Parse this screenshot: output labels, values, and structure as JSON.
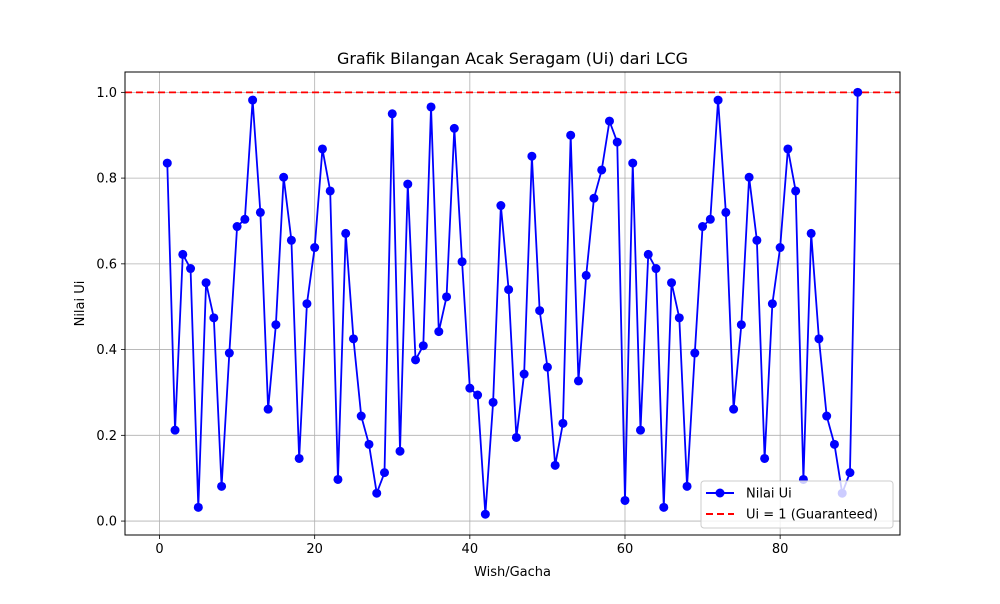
{
  "chart_data": {
    "type": "line",
    "title": "Grafik Bilangan Acak Seragam (Ui) dari LCG",
    "xlabel": "Wish/Gacha",
    "ylabel": "Nilai Ui",
    "xlim": [
      -4.45,
      95.45
    ],
    "ylim": [
      -0.0325,
      1.0475
    ],
    "xticks": [
      0,
      20,
      40,
      60,
      80
    ],
    "xtick_labels": [
      "0",
      "20",
      "40",
      "60",
      "80"
    ],
    "yticks": [
      0.0,
      0.2,
      0.4,
      0.6,
      0.8,
      1.0
    ],
    "ytick_labels": [
      "0.0",
      "0.2",
      "0.4",
      "0.6",
      "0.8",
      "1.0"
    ],
    "grid": true,
    "legend_position": "lower-right",
    "series": [
      {
        "name": "Nilai Ui",
        "color": "#0000ff",
        "marker": "circle",
        "x": [
          1,
          2,
          3,
          4,
          5,
          6,
          7,
          8,
          9,
          10,
          11,
          12,
          13,
          14,
          15,
          16,
          17,
          18,
          19,
          20,
          21,
          22,
          23,
          24,
          25,
          26,
          27,
          28,
          29,
          30,
          31,
          32,
          33,
          34,
          35,
          36,
          37,
          38,
          39,
          40,
          41,
          42,
          43,
          44,
          45,
          46,
          47,
          48,
          49,
          50,
          51,
          52,
          53,
          54,
          55,
          56,
          57,
          58,
          59,
          60,
          61,
          62,
          63,
          64,
          65,
          66,
          67,
          68,
          69,
          70,
          71,
          72,
          73,
          74,
          75,
          76,
          77,
          78,
          79,
          80,
          81,
          82,
          83,
          84,
          85,
          86,
          87,
          88,
          89,
          90
        ],
        "y": [
          0.835,
          0.212,
          0.622,
          0.589,
          0.032,
          0.556,
          0.474,
          0.081,
          0.392,
          0.687,
          0.704,
          0.982,
          0.72,
          0.261,
          0.458,
          0.802,
          0.655,
          0.146,
          0.507,
          0.638,
          0.868,
          0.77,
          0.097,
          0.671,
          0.425,
          0.245,
          0.179,
          0.065,
          0.113,
          0.95,
          0.163,
          0.786,
          0.376,
          0.409,
          0.966,
          0.442,
          0.523,
          0.916,
          0.605,
          0.31,
          0.294,
          0.016,
          0.277,
          0.736,
          0.54,
          0.195,
          0.343,
          0.851,
          0.491,
          0.359,
          0.13,
          0.228,
          0.9,
          0.327,
          0.573,
          0.753,
          0.819,
          0.933,
          0.884,
          0.048,
          0.835,
          0.212,
          0.622,
          0.589,
          0.032,
          0.556,
          0.474,
          0.081,
          0.392,
          0.687,
          0.704,
          0.982,
          0.72,
          0.261,
          0.458,
          0.802,
          0.655,
          0.146,
          0.507,
          0.638,
          0.868,
          0.77,
          0.097,
          0.671,
          0.425,
          0.245,
          0.179,
          0.065,
          0.113,
          1.0
        ]
      },
      {
        "name": "Ui = 1 (Guaranteed)",
        "color": "#ff0000",
        "line_style": "dashed",
        "type": "hline",
        "y": 1.0
      }
    ]
  }
}
